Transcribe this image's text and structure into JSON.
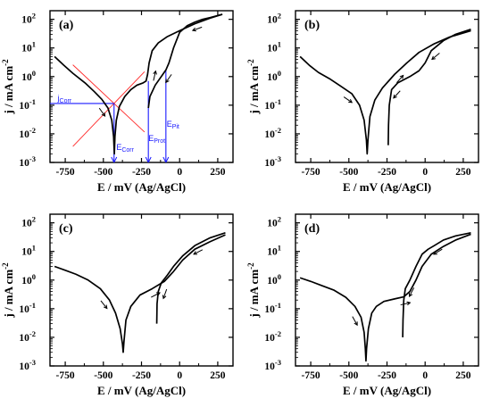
{
  "figure": {
    "colors": {
      "curve": "#000000",
      "tafel_lines": "#ff2a2a",
      "annotation": "#1a1aff",
      "background": "#ffffff"
    }
  },
  "chart_data": [
    {
      "type": "line",
      "panel_label": "(a)",
      "xlabel": "E / mV (Ag/AgCl)",
      "ylabel": "j / mA cm",
      "ylabel_superscript": "-2",
      "xlim": [
        -850,
        350
      ],
      "ylim": [
        0.001,
        200
      ],
      "yscale": "log",
      "x_ticks": [
        -750,
        -500,
        -250,
        0,
        250
      ],
      "x_tick_labels": [
        "-750",
        "-500",
        "-250",
        "0",
        "250"
      ],
      "y_ticks": [
        0.001,
        0.01,
        0.1,
        1,
        10,
        100
      ],
      "y_tick_label_base": "10",
      "y_tick_label_exponents": [
        "-3",
        "-2",
        "-1",
        "0",
        "1",
        "2"
      ],
      "series": [
        {
          "points": [
            [
              -820,
              5
            ],
            [
              -760,
              2.5
            ],
            [
              -700,
              1.3
            ],
            [
              -620,
              0.6
            ],
            [
              -560,
              0.3
            ],
            [
              -510,
              0.16
            ],
            [
              -470,
              0.08
            ],
            [
              -445,
              0.03
            ],
            [
              -433,
              0.008
            ],
            [
              -428,
              0.002
            ],
            [
              -424,
              0.008
            ],
            [
              -415,
              0.03
            ],
            [
              -395,
              0.09
            ],
            [
              -360,
              0.2
            ],
            [
              -320,
              0.35
            ],
            [
              -280,
              0.5
            ],
            [
              -240,
              0.6
            ],
            [
              -220,
              0.7
            ],
            [
              -210,
              1.2
            ],
            [
              -200,
              3
            ],
            [
              -180,
              8
            ],
            [
              -140,
              15
            ],
            [
              -80,
              25
            ],
            [
              0,
              40
            ],
            [
              100,
              70
            ],
            [
              200,
              110
            ],
            [
              280,
              150
            ]
          ]
        },
        {
          "points": [
            [
              280,
              150
            ],
            [
              200,
              115
            ],
            [
              150,
              100
            ],
            [
              100,
              80
            ],
            [
              50,
              60
            ],
            [
              0,
              35
            ],
            [
              -40,
              10
            ],
            [
              -70,
              3
            ],
            [
              -90,
              1.7
            ],
            [
              -110,
              1.2
            ],
            [
              -160,
              0.5
            ],
            [
              -195,
              0.2
            ],
            [
              -205,
              0.08
            ]
          ]
        }
      ],
      "annotations": [
        {
          "main": "j",
          "sub": "Corr",
          "x": -800,
          "y": 0.115
        },
        {
          "main": "E",
          "sub": "Corr",
          "x": -415,
          "y": 0.0022
        },
        {
          "main": "E",
          "sub": "Prot",
          "x": -205,
          "y": 0.0045
        },
        {
          "main": "E",
          "sub": "Pit",
          "x": -85,
          "y": 0.014
        }
      ],
      "markers": {
        "jcorr": 0.115,
        "ecorr": -430,
        "eprot": -205,
        "epit": -90
      }
    },
    {
      "type": "line",
      "panel_label": "(b)",
      "xlabel": "E / mV (Ag/AgCl)",
      "ylabel": "j / mA cm",
      "ylabel_superscript": "-2",
      "xlim": [
        -850,
        350
      ],
      "ylim": [
        0.001,
        200
      ],
      "yscale": "log",
      "x_ticks": [
        -750,
        -500,
        -250,
        0,
        250
      ],
      "x_tick_labels": [
        "-750",
        "-500",
        "-250",
        "0",
        "250"
      ],
      "y_ticks": [
        0.001,
        0.01,
        0.1,
        1,
        10,
        100
      ],
      "y_tick_label_base": "10",
      "y_tick_label_exponents": [
        "-3",
        "-2",
        "-1",
        "0",
        "1",
        "2"
      ],
      "series": [
        {
          "points": [
            [
              -820,
              5
            ],
            [
              -760,
              2.5
            ],
            [
              -700,
              1.4
            ],
            [
              -620,
              0.8
            ],
            [
              -550,
              0.45
            ],
            [
              -480,
              0.25
            ],
            [
              -430,
              0.1
            ],
            [
              -400,
              0.03
            ],
            [
              -385,
              0.006
            ],
            [
              -380,
              0.002
            ],
            [
              -375,
              0.006
            ],
            [
              -362,
              0.04
            ],
            [
              -330,
              0.15
            ],
            [
              -280,
              0.4
            ],
            [
              -200,
              1.2
            ],
            [
              -120,
              3
            ],
            [
              -40,
              7
            ],
            [
              60,
              14
            ],
            [
              160,
              24
            ],
            [
              300,
              40
            ]
          ]
        },
        {
          "points": [
            [
              300,
              45
            ],
            [
              200,
              30
            ],
            [
              120,
              18
            ],
            [
              40,
              8
            ],
            [
              0,
              3
            ],
            [
              -40,
              1.6
            ],
            [
              -100,
              1
            ],
            [
              -180,
              0.6
            ],
            [
              -220,
              0.35
            ],
            [
              -235,
              0.1
            ],
            [
              -240,
              0.02
            ],
            [
              -242,
              0.004
            ]
          ]
        }
      ]
    },
    {
      "type": "line",
      "panel_label": "(c)",
      "xlabel": "E / mV (Ag/AgCl)",
      "ylabel": "j / mA cm",
      "ylabel_superscript": "-2",
      "xlim": [
        -850,
        350
      ],
      "ylim": [
        0.001,
        200
      ],
      "yscale": "log",
      "x_ticks": [
        -750,
        -500,
        -250,
        0,
        250
      ],
      "x_tick_labels": [
        "-750",
        "-500",
        "-250",
        "0",
        "250"
      ],
      "y_ticks": [
        0.001,
        0.01,
        0.1,
        1,
        10,
        100
      ],
      "y_tick_label_base": "10",
      "y_tick_label_exponents": [
        "-3",
        "-2",
        "-1",
        "0",
        "1",
        "2"
      ],
      "series": [
        {
          "points": [
            [
              -820,
              3
            ],
            [
              -750,
              2.2
            ],
            [
              -680,
              1.6
            ],
            [
              -600,
              1.0
            ],
            [
              -520,
              0.5
            ],
            [
              -460,
              0.2
            ],
            [
              -420,
              0.07
            ],
            [
              -390,
              0.02
            ],
            [
              -375,
              0.006
            ],
            [
              -370,
              0.003
            ],
            [
              -365,
              0.007
            ],
            [
              -352,
              0.04
            ],
            [
              -320,
              0.12
            ],
            [
              -260,
              0.3
            ],
            [
              -180,
              0.5
            ],
            [
              -100,
              0.9
            ],
            [
              -40,
              2
            ],
            [
              20,
              5
            ],
            [
              100,
              12
            ],
            [
              200,
              22
            ],
            [
              300,
              38
            ]
          ]
        },
        {
          "points": [
            [
              300,
              45
            ],
            [
              200,
              30
            ],
            [
              100,
              16
            ],
            [
              20,
              7
            ],
            [
              -40,
              3
            ],
            [
              -80,
              1.5
            ],
            [
              -120,
              0.8
            ],
            [
              -140,
              0.4
            ],
            [
              -148,
              0.15
            ],
            [
              -150,
              0.03
            ]
          ]
        }
      ]
    },
    {
      "type": "line",
      "panel_label": "(d)",
      "xlabel": "E / mV (Ag/AgCl)",
      "ylabel": "j / mA cm",
      "ylabel_superscript": "-2",
      "xlim": [
        -850,
        350
      ],
      "ylim": [
        0.001,
        200
      ],
      "yscale": "log",
      "x_ticks": [
        -750,
        -500,
        -250,
        0,
        250
      ],
      "x_tick_labels": [
        "-750",
        "-500",
        "-250",
        "0",
        "250"
      ],
      "y_ticks": [
        0.001,
        0.01,
        0.1,
        1,
        10,
        100
      ],
      "y_tick_label_base": "10",
      "y_tick_label_exponents": [
        "-3",
        "-2",
        "-1",
        "0",
        "1",
        "2"
      ],
      "series": [
        {
          "points": [
            [
              -820,
              1.2
            ],
            [
              -750,
              0.9
            ],
            [
              -680,
              0.65
            ],
            [
              -600,
              0.45
            ],
            [
              -520,
              0.25
            ],
            [
              -460,
              0.12
            ],
            [
              -420,
              0.05
            ],
            [
              -400,
              0.015
            ],
            [
              -392,
              0.004
            ],
            [
              -388,
              0.0015
            ],
            [
              -384,
              0.004
            ],
            [
              -372,
              0.02
            ],
            [
              -350,
              0.07
            ],
            [
              -320,
              0.12
            ],
            [
              -270,
              0.18
            ],
            [
              -200,
              0.22
            ],
            [
              -140,
              0.26
            ],
            [
              -100,
              0.4
            ],
            [
              -60,
              1
            ],
            [
              -20,
              3
            ],
            [
              40,
              8
            ],
            [
              120,
              15
            ],
            [
              200,
              25
            ],
            [
              300,
              40
            ]
          ]
        },
        {
          "points": [
            [
              300,
              45
            ],
            [
              200,
              35
            ],
            [
              120,
              25
            ],
            [
              60,
              16
            ],
            [
              20,
              12
            ],
            [
              -20,
              8
            ],
            [
              -60,
              3
            ],
            [
              -100,
              1
            ],
            [
              -130,
              0.5
            ],
            [
              -140,
              0.2
            ],
            [
              -145,
              0.04
            ],
            [
              -147,
              0.01
            ]
          ]
        }
      ]
    }
  ]
}
